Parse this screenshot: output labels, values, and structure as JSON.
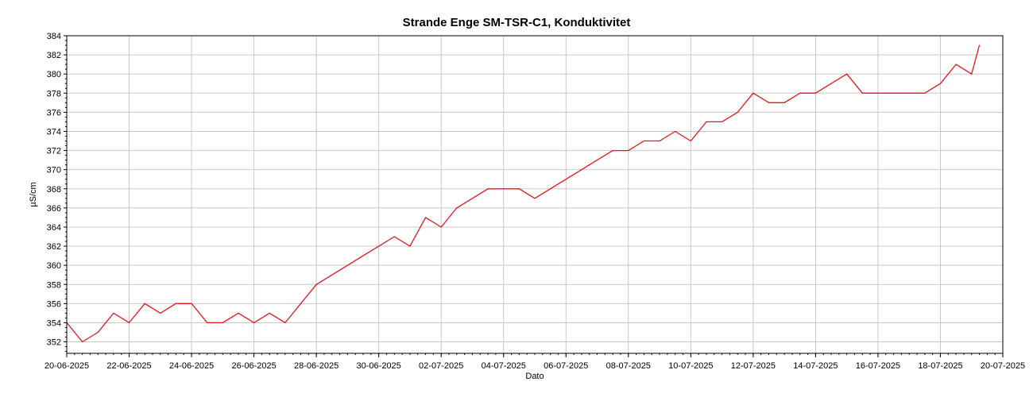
{
  "chart_data": {
    "type": "line",
    "title": "Strande Enge SM-TSR-C1, Konduktivitet",
    "xlabel": "Dato",
    "ylabel": "µS/cm",
    "x_ticks": [
      "20-06-2025",
      "22-06-2025",
      "24-06-2025",
      "26-06-2025",
      "28-06-2025",
      "30-06-2025",
      "02-07-2025",
      "04-07-2025",
      "06-07-2025",
      "08-07-2025",
      "10-07-2025",
      "12-07-2025",
      "14-07-2025",
      "16-07-2025",
      "18-07-2025",
      "20-07-2025"
    ],
    "xlim": [
      "2025-06-20",
      "2025-07-20"
    ],
    "ylim": [
      350.8,
      384
    ],
    "y_ticks": [
      352,
      354,
      356,
      358,
      360,
      362,
      364,
      366,
      368,
      370,
      372,
      374,
      376,
      378,
      380,
      382,
      384
    ],
    "grid": true,
    "series": [
      {
        "color": "#e8141c",
        "x": [
          "2025-06-20",
          "2025-06-20T12:00",
          "2025-06-21",
          "2025-06-21T12:00",
          "2025-06-22",
          "2025-06-22T12:00",
          "2025-06-23",
          "2025-06-23T12:00",
          "2025-06-24",
          "2025-06-24T12:00",
          "2025-06-25",
          "2025-06-25T12:00",
          "2025-06-26",
          "2025-06-26T12:00",
          "2025-06-27",
          "2025-06-27T12:00",
          "2025-06-28",
          "2025-06-28T12:00",
          "2025-06-29",
          "2025-06-29T12:00",
          "2025-06-30",
          "2025-06-30T12:00",
          "2025-07-01",
          "2025-07-01T12:00",
          "2025-07-02",
          "2025-07-02T12:00",
          "2025-07-03",
          "2025-07-03T12:00",
          "2025-07-04",
          "2025-07-04T12:00",
          "2025-07-05",
          "2025-07-05T12:00",
          "2025-07-06",
          "2025-07-06T12:00",
          "2025-07-07",
          "2025-07-07T12:00",
          "2025-07-08",
          "2025-07-08T12:00",
          "2025-07-09",
          "2025-07-09T12:00",
          "2025-07-10",
          "2025-07-10T12:00",
          "2025-07-11",
          "2025-07-11T12:00",
          "2025-07-12",
          "2025-07-12T12:00",
          "2025-07-13",
          "2025-07-13T12:00",
          "2025-07-14",
          "2025-07-14T12:00",
          "2025-07-15",
          "2025-07-15T12:00",
          "2025-07-16",
          "2025-07-16T12:00",
          "2025-07-17",
          "2025-07-17T12:00",
          "2025-07-18",
          "2025-07-18T12:00",
          "2025-07-19",
          "2025-07-19T06:00"
        ],
        "values": [
          354,
          352,
          353,
          355,
          354,
          356,
          355,
          356,
          356,
          354,
          354,
          355,
          354,
          355,
          354,
          356,
          358,
          359,
          360,
          361,
          362,
          363,
          362,
          365,
          364,
          366,
          367,
          368,
          368,
          368,
          367,
          368,
          369,
          370,
          371,
          372,
          372,
          373,
          373,
          374,
          373,
          375,
          375,
          376,
          378,
          377,
          377,
          378,
          378,
          379,
          380,
          378,
          378,
          378,
          378,
          378,
          379,
          381,
          380,
          383
        ]
      }
    ]
  }
}
